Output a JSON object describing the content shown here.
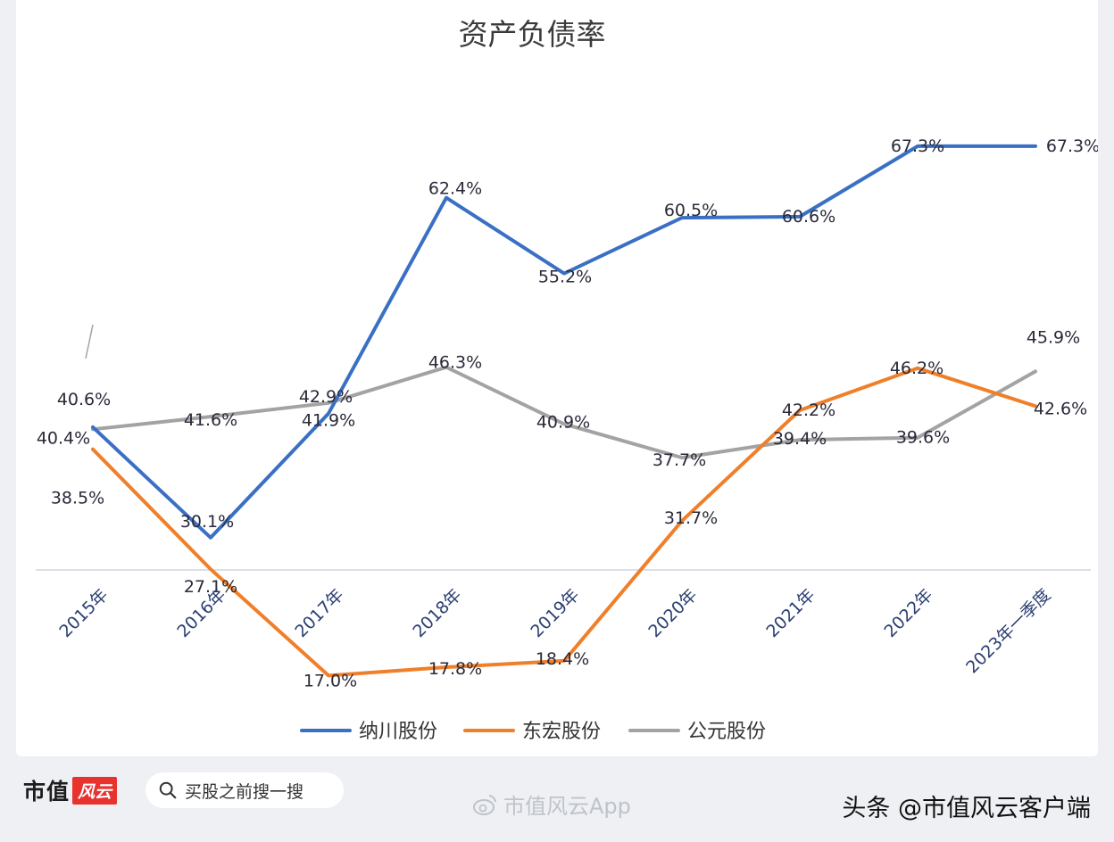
{
  "footer": {
    "brand_name": "市值",
    "brand_mark": "风云",
    "search_placeholder": "买股之前搜一搜",
    "watermark_app": "市值风云App",
    "source": "头条 @市值风云客户端"
  },
  "colors": {
    "nachuan": "#3a70c4",
    "donghong": "#f07f2a",
    "gongyuan": "#a3a3a3"
  },
  "chart_data": {
    "type": "line",
    "title": "资产负债率",
    "categories": [
      "2015年",
      "2016年",
      "2017年",
      "2018年",
      "2019年",
      "2020年",
      "2021年",
      "2022年",
      "2023年一季度"
    ],
    "series": [
      {
        "name": "纳川股份",
        "values": [
          40.6,
          30.1,
          41.9,
          62.4,
          55.2,
          60.5,
          60.6,
          67.3,
          67.3
        ]
      },
      {
        "name": "东宏股份",
        "values": [
          38.5,
          27.1,
          17.0,
          17.8,
          18.4,
          31.7,
          42.2,
          46.2,
          42.6
        ]
      },
      {
        "name": "公元股份",
        "values": [
          40.4,
          41.6,
          42.9,
          46.3,
          40.9,
          37.7,
          39.4,
          39.6,
          45.9
        ]
      }
    ],
    "value_labels": [
      [
        "40.6%",
        "30.1%",
        "41.9%",
        "62.4%",
        "55.2%",
        "60.5%",
        "60.6%",
        "67.3%",
        "67.3%"
      ],
      [
        "38.5%",
        "27.1%",
        "17.0%",
        "17.8%",
        "18.4%",
        "31.7%",
        "42.2%",
        "46.2%",
        "42.6%"
      ],
      [
        "40.4%",
        "41.6%",
        "42.9%",
        "46.3%",
        "40.9%",
        "37.7%",
        "39.4%",
        "39.6%",
        "45.9%"
      ]
    ],
    "ylim": [
      0,
      80
    ],
    "grid": false,
    "legend_position": "bottom"
  }
}
